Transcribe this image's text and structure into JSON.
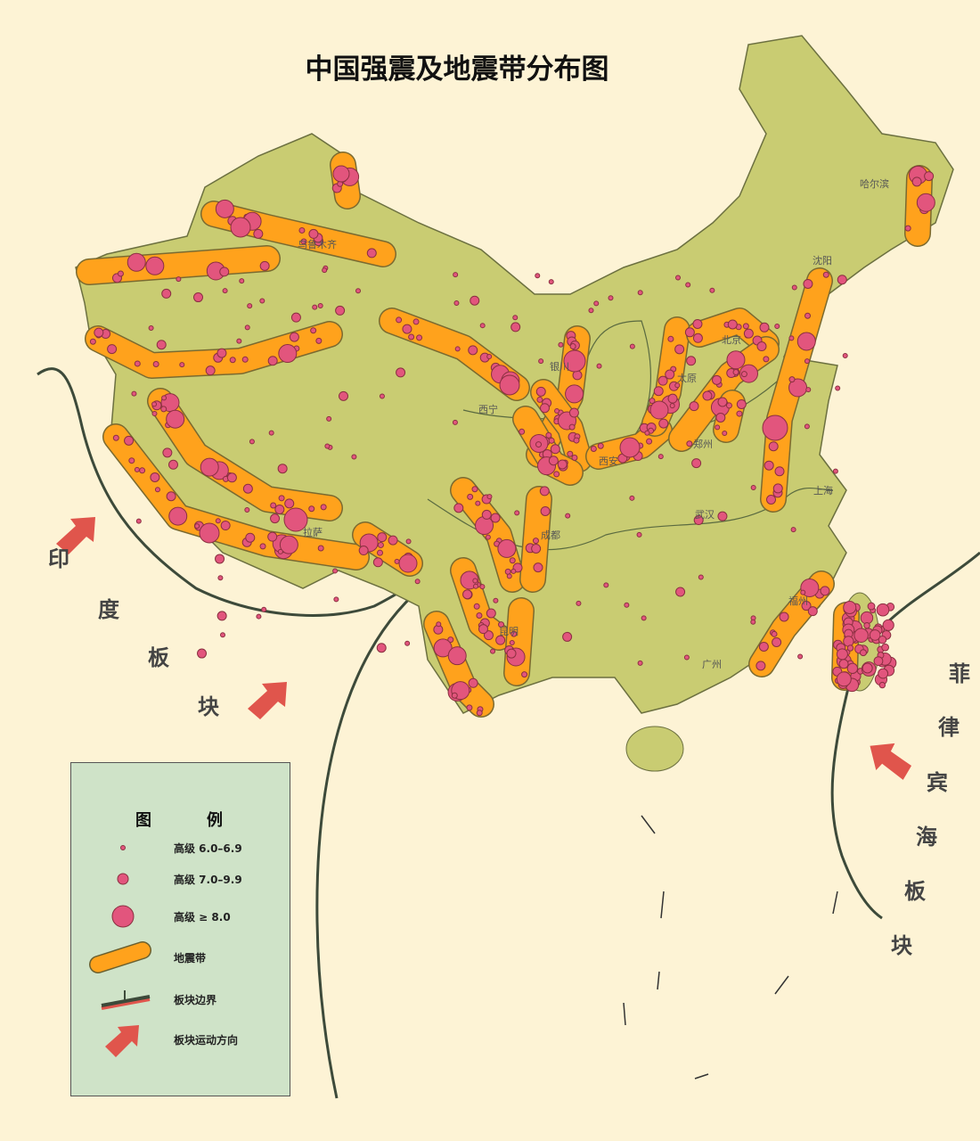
{
  "title": "中国强震及地震带分布图",
  "colors": {
    "background": "#fdf3d5",
    "land": "#c9cc72",
    "seismic_belt": "#ffa21c",
    "earthquake": "#e2557d",
    "plate_boundary": "#3d4a3a",
    "arrow": "#e0554c",
    "legend_bg": "#cfe3c8"
  },
  "plates": {
    "india": [
      "印",
      "度",
      "板",
      "块"
    ],
    "philippine": [
      "菲",
      "律",
      "宾",
      "海",
      "板",
      "块"
    ]
  },
  "cities": [
    "哈尔滨",
    "沈阳",
    "北京",
    "太原",
    "银川",
    "西宁",
    "西安",
    "郑州",
    "上海",
    "武汉",
    "成都",
    "昆明",
    "广州",
    "福州",
    "乌鲁木齐",
    "拉萨"
  ],
  "legend": {
    "title_left": "图",
    "title_right": "例",
    "items": [
      {
        "symbol": "small-dot",
        "label": "高级 6.0–6.9"
      },
      {
        "symbol": "medium-dot",
        "label": "高级 7.0–9.9"
      },
      {
        "symbol": "large-dot",
        "label": "高级 ≥ 8.0"
      },
      {
        "symbol": "seismic-belt",
        "label": "地震带"
      },
      {
        "symbol": "plate-boundary",
        "label": "板块边界"
      },
      {
        "symbol": "plate-arrow",
        "label": "板块运动方向"
      }
    ]
  }
}
